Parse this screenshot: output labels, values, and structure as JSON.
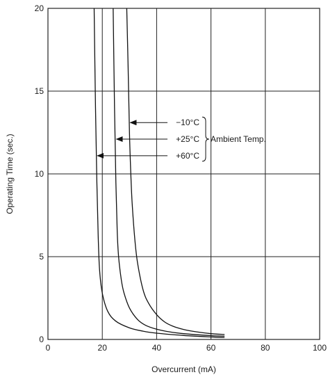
{
  "chart_data": {
    "type": "line",
    "title": "",
    "xlabel": "Overcurrent (mA)",
    "ylabel": "Operating Time (sec.)",
    "xlim": [
      0,
      100
    ],
    "ylim": [
      0,
      20
    ],
    "xticks": [
      0,
      20,
      40,
      60,
      80,
      100
    ],
    "yticks": [
      0,
      5,
      10,
      15,
      20
    ],
    "x_tick_labels": [
      "0",
      "20",
      "40",
      "60",
      "80",
      "100"
    ],
    "y_tick_labels": [
      "0",
      "5",
      "10",
      "15",
      "20"
    ],
    "grid": true,
    "series": [
      {
        "name": "+60°C",
        "x": [
          17.0,
          17.5,
          18.0,
          18.5,
          19.0,
          20.0,
          22.0,
          25.0,
          30.0,
          35.0,
          40.0,
          50.0,
          60.0,
          65.0
        ],
        "y": [
          20.0,
          14.0,
          9.5,
          6.2,
          4.2,
          2.8,
          1.7,
          1.1,
          0.7,
          0.5,
          0.38,
          0.24,
          0.15,
          0.12
        ]
      },
      {
        "name": "+25°C",
        "x": [
          24.0,
          24.5,
          25.0,
          25.5,
          26.0,
          27.0,
          28.0,
          30.0,
          33.0,
          36.0,
          40.0,
          45.0,
          50.0,
          60.0,
          65.0
        ],
        "y": [
          20.0,
          14.0,
          9.5,
          6.5,
          5.0,
          3.6,
          2.8,
          1.9,
          1.2,
          0.85,
          0.62,
          0.45,
          0.35,
          0.23,
          0.2
        ]
      },
      {
        "name": "−10°C",
        "x": [
          29.0,
          29.5,
          30.0,
          30.5,
          31.0,
          32.0,
          33.0,
          35.0,
          37.0,
          40.0,
          43.0,
          46.0,
          50.0,
          55.0,
          60.0,
          65.0
        ],
        "y": [
          20.0,
          16.5,
          12.5,
          10.0,
          8.2,
          6.0,
          4.6,
          3.0,
          2.2,
          1.5,
          1.05,
          0.8,
          0.6,
          0.45,
          0.35,
          0.3
        ]
      }
    ],
    "annotations": {
      "labels": [
        "−10°C",
        "+25°C",
        "+60°C"
      ],
      "group_label": "Ambient Temp.",
      "arrow_targets": [
        {
          "x": 30.3,
          "y": 13.1
        },
        {
          "x": 25.2,
          "y": 12.1
        },
        {
          "x": 18.2,
          "y": 11.1
        }
      ]
    }
  }
}
